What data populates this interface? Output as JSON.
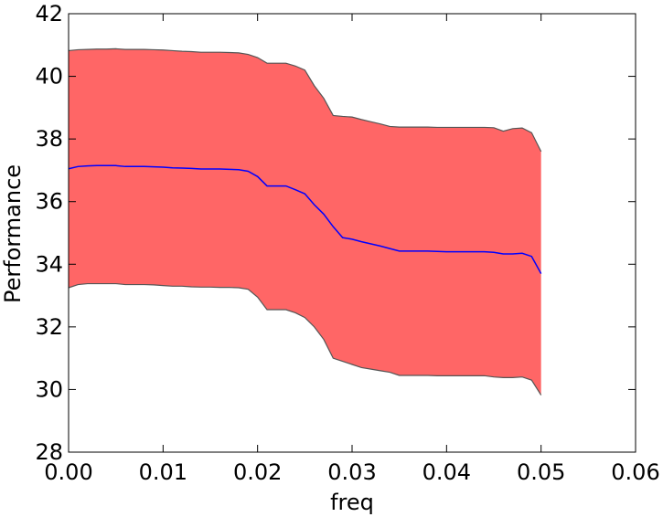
{
  "chart_data": {
    "type": "area",
    "title": "",
    "xlabel": "freq",
    "ylabel": "Performance",
    "xlim": [
      0.0,
      0.06
    ],
    "ylim": [
      28,
      42
    ],
    "xticks": [
      0.0,
      0.01,
      0.02,
      0.03,
      0.04,
      0.05,
      0.06
    ],
    "xtick_labels": [
      "0.00",
      "0.01",
      "0.02",
      "0.03",
      "0.04",
      "0.05",
      "0.06"
    ],
    "yticks": [
      28,
      30,
      32,
      34,
      36,
      38,
      40,
      42
    ],
    "ytick_labels": [
      "28",
      "30",
      "32",
      "34",
      "36",
      "38",
      "40",
      "42"
    ],
    "grid": false,
    "legend": "none",
    "colors": {
      "band_fill": "#ff6666",
      "band_edge": "#555555",
      "mean_line": "#0000ff"
    },
    "x": [
      0.0,
      0.001,
      0.002,
      0.003,
      0.004,
      0.005,
      0.006,
      0.007,
      0.008,
      0.009,
      0.01,
      0.011,
      0.012,
      0.013,
      0.014,
      0.015,
      0.016,
      0.017,
      0.018,
      0.019,
      0.02,
      0.021,
      0.022,
      0.023,
      0.024,
      0.025,
      0.026,
      0.027,
      0.028,
      0.029,
      0.03,
      0.031,
      0.032,
      0.033,
      0.034,
      0.035,
      0.036,
      0.037,
      0.038,
      0.039,
      0.04,
      0.041,
      0.042,
      0.043,
      0.044,
      0.045,
      0.046,
      0.047,
      0.048,
      0.049,
      0.05
    ],
    "series": [
      {
        "values": [
          37.05,
          37.12,
          37.14,
          37.15,
          37.15,
          37.15,
          37.12,
          37.12,
          37.12,
          37.11,
          37.1,
          37.08,
          37.07,
          37.06,
          37.04,
          37.04,
          37.04,
          37.03,
          37.02,
          36.97,
          36.8,
          36.5,
          36.5,
          36.5,
          36.38,
          36.25,
          35.9,
          35.6,
          35.2,
          34.85,
          34.8,
          34.72,
          34.65,
          34.58,
          34.5,
          34.42,
          34.42,
          34.42,
          34.42,
          34.41,
          34.4,
          34.4,
          34.4,
          34.4,
          34.4,
          34.38,
          34.33,
          34.33,
          34.35,
          34.25,
          33.7
        ]
      },
      {
        "values": [
          40.82,
          40.85,
          40.86,
          40.87,
          40.87,
          40.88,
          40.86,
          40.86,
          40.86,
          40.85,
          40.84,
          40.82,
          40.8,
          40.79,
          40.77,
          40.77,
          40.77,
          40.76,
          40.75,
          40.7,
          40.6,
          40.42,
          40.42,
          40.42,
          40.33,
          40.2,
          39.7,
          39.3,
          38.75,
          38.72,
          38.7,
          38.62,
          38.55,
          38.48,
          38.4,
          38.38,
          38.38,
          38.38,
          38.38,
          38.37,
          38.37,
          38.37,
          38.37,
          38.37,
          38.37,
          38.36,
          38.25,
          38.33,
          38.35,
          38.2,
          37.6
        ]
      },
      {
        "values": [
          33.25,
          33.35,
          33.38,
          33.38,
          33.38,
          33.38,
          33.35,
          33.35,
          33.35,
          33.34,
          33.32,
          33.3,
          33.3,
          33.28,
          33.27,
          33.27,
          33.26,
          33.26,
          33.25,
          33.2,
          32.95,
          32.55,
          32.55,
          32.55,
          32.45,
          32.3,
          32.0,
          31.6,
          31.0,
          30.9,
          30.8,
          30.7,
          30.65,
          30.6,
          30.55,
          30.45,
          30.45,
          30.45,
          30.45,
          30.44,
          30.44,
          30.44,
          30.44,
          30.44,
          30.44,
          30.4,
          30.38,
          30.38,
          30.4,
          30.3,
          29.82
        ]
      }
    ]
  }
}
